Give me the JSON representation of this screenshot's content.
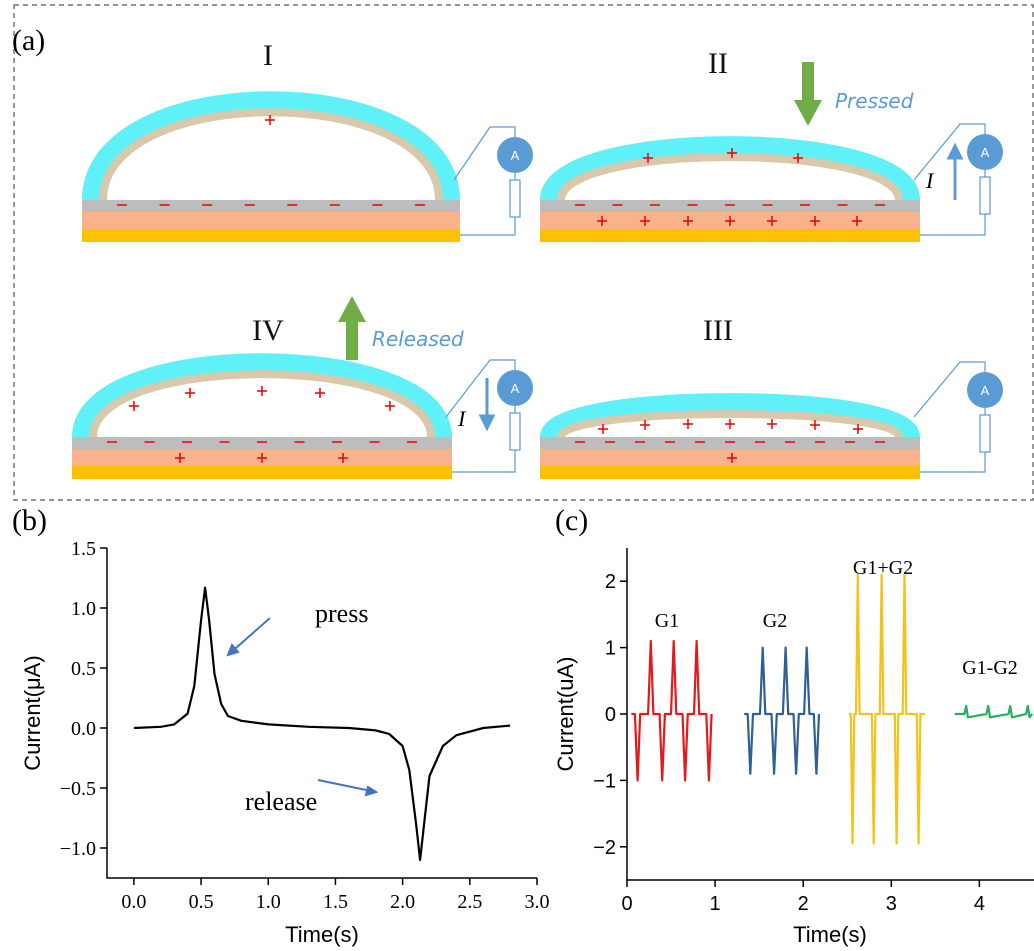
{
  "panels": {
    "a": "(a)",
    "b": "(b)",
    "c": "(c)"
  },
  "diagram": {
    "stages": [
      "I",
      "II",
      "III",
      "IV"
    ],
    "pressed": "Pressed",
    "released": "Released",
    "current_symbol": "I",
    "ammeter": "A"
  },
  "chart_data": [
    {
      "type": "line",
      "y_label": "Current(μA)",
      "x_label": "Time(s)",
      "annotations": [
        "press",
        "release"
      ],
      "x": [
        0,
        0.2,
        0.3,
        0.4,
        0.45,
        0.5,
        0.53,
        0.56,
        0.6,
        0.65,
        0.7,
        0.8,
        1.0,
        1.3,
        1.6,
        1.8,
        1.9,
        2.0,
        2.05,
        2.1,
        2.13,
        2.16,
        2.2,
        2.3,
        2.4,
        2.6,
        2.8
      ],
      "values": [
        0,
        0.01,
        0.03,
        0.12,
        0.35,
        0.9,
        1.17,
        0.9,
        0.45,
        0.2,
        0.1,
        0.06,
        0.03,
        0.01,
        0,
        -0.02,
        -0.05,
        -0.15,
        -0.35,
        -0.8,
        -1.1,
        -0.8,
        -0.4,
        -0.15,
        -0.06,
        0,
        0.02
      ],
      "color": "#000000",
      "xlim": [
        -0.2,
        3.0
      ],
      "ylim": [
        -1.25,
        1.5
      ],
      "xticks": [
        {
          "value": 0,
          "label": "0.0"
        },
        0.5,
        {
          "value": 1,
          "label": "1.0"
        },
        1.5,
        {
          "value": 2,
          "label": "2.0"
        },
        2.5,
        {
          "value": 3,
          "label": "3.0"
        }
      ],
      "yticks": [
        1.5,
        {
          "value": 1,
          "label": "1.0"
        },
        0.5,
        {
          "value": 0,
          "label": "0.0"
        },
        {
          "value": -0.5,
          "label": "−0.5"
        },
        {
          "value": -1,
          "label": "−1.0"
        }
      ]
    },
    {
      "type": "line",
      "y_label": "Current(uA)",
      "x_label": "Time(s)",
      "series": [
        {
          "name": "G1",
          "color": "#e31a1c",
          "x": [
            0.05,
            0.09,
            0.12,
            0.15,
            0.24,
            0.27,
            0.3,
            0.37,
            0.4,
            0.43,
            0.5,
            0.53,
            0.56,
            0.63,
            0.66,
            0.69,
            0.76,
            0.79,
            0.82,
            0.9,
            0.93,
            0.96
          ],
          "values": [
            0,
            0,
            -1.0,
            0,
            0,
            1.1,
            0,
            0,
            -1.0,
            0,
            0,
            1.1,
            0,
            0,
            -1.0,
            0,
            0,
            1.1,
            0,
            0,
            -1.0,
            0
          ]
        },
        {
          "name": "G2",
          "color": "#2f5f95",
          "x": [
            1.33,
            1.37,
            1.4,
            1.43,
            1.51,
            1.54,
            1.57,
            1.64,
            1.67,
            1.7,
            1.77,
            1.8,
            1.83,
            1.89,
            1.92,
            1.95,
            2.01,
            2.04,
            2.07,
            2.12,
            2.15,
            2.18
          ],
          "values": [
            0,
            0,
            -0.9,
            0,
            0,
            1.0,
            0,
            0,
            -0.9,
            0,
            0,
            1.0,
            0,
            0,
            -0.9,
            0,
            0,
            1.0,
            0,
            0,
            -0.9,
            0
          ]
        },
        {
          "name": "G1+G2",
          "color": "#f5c21b",
          "x": [
            2.52,
            2.54,
            2.56,
            2.58,
            2.6,
            2.62,
            2.64,
            2.78,
            2.8,
            2.82,
            2.87,
            2.89,
            2.91,
            3.04,
            3.06,
            3.08,
            3.13,
            3.15,
            3.17,
            3.29,
            3.31,
            3.33,
            3.38
          ],
          "values": [
            0,
            0,
            -1.95,
            0,
            0,
            2.1,
            0,
            0,
            -1.95,
            0,
            0,
            2.1,
            0,
            0,
            -1.95,
            0,
            0,
            2.1,
            0,
            0,
            -1.95,
            0,
            0
          ]
        },
        {
          "name": "G1-G2",
          "color": "#27ae60",
          "x": [
            3.72,
            3.83,
            3.85,
            3.87,
            4.08,
            4.1,
            4.12,
            4.33,
            4.35,
            4.37,
            4.53,
            4.55,
            4.57,
            4.6
          ],
          "values": [
            0,
            0,
            0.12,
            -0.05,
            0,
            0.12,
            -0.05,
            0,
            0.12,
            -0.05,
            0,
            0.12,
            -0.05,
            0
          ]
        }
      ],
      "xlim": [
        0,
        4.62
      ],
      "ylim": [
        -2.5,
        2.5
      ],
      "xticks": [
        0,
        1,
        2,
        3,
        4
      ],
      "yticks": [
        2,
        1,
        0,
        {
          "value": -1,
          "label": "−1"
        },
        {
          "value": -2,
          "label": "−2"
        }
      ]
    }
  ]
}
